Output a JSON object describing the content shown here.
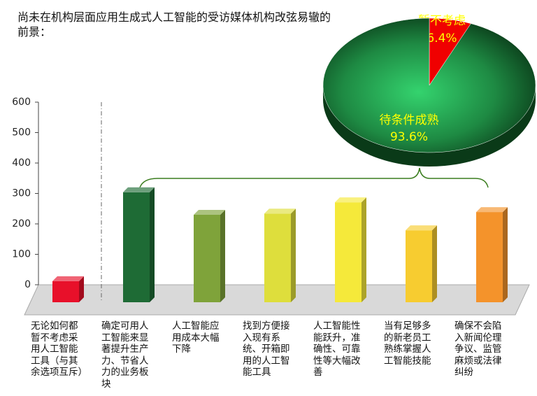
{
  "chart_data": [
    {
      "type": "bar3d",
      "title": "尚未在机构层面应用生成式人工智能的受访媒体机构改弦易辙的前景：",
      "categories": [
        "无论如何都暂不考虑采用人工智能工具（与其余选项互斥）",
        "确定可用人工智能来显著提升生产力、节省人力的业务板块",
        "人工智能应用成本大幅下降",
        "找到方便接入现有系统、开箱即用的人工智能工具",
        "人工智能性能跃升，准确性、可靠性等大幅改善",
        "当有足够多的新老员工熟练掌握人工智能技能",
        "确保不会陷入新闻伦理争议、监管麻烦或法律纠纷"
      ],
      "values": [
        28,
        320,
        246,
        250,
        287,
        195,
        255
      ],
      "colors": [
        "#e8102a",
        "#1e6b35",
        "#7fa33a",
        "#dede3c",
        "#f5e93a",
        "#f7cc30",
        "#f4932b"
      ],
      "ylim": [
        0,
        600
      ],
      "yticks": [
        0,
        100,
        200,
        300,
        400,
        500,
        600
      ]
    },
    {
      "type": "pie3d",
      "categories": [
        "暂不考虑",
        "待条件成熟"
      ],
      "values": [
        6.4,
        93.6
      ],
      "value_labels": [
        "6.4%",
        "93.6%"
      ],
      "colors": [
        "#f00000",
        "#1f8a40"
      ],
      "label_color": "#ffff00"
    }
  ]
}
